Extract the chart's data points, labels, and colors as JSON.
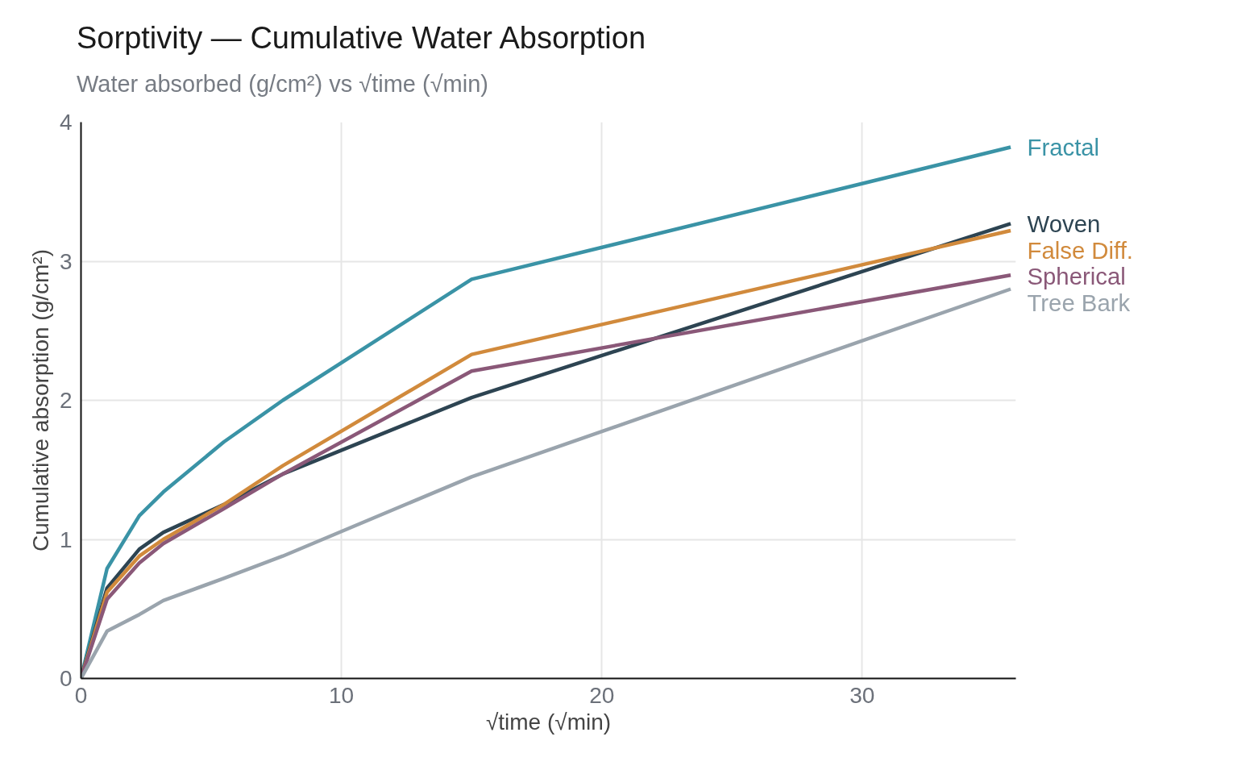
{
  "chart_data": {
    "type": "line",
    "title": "Sorptivity — Cumulative Water Absorption",
    "subtitle": "Water absorbed (g/cm²) vs √time (√min)",
    "xlabel": "√time (√min)",
    "ylabel": "Cumulative absorption (g/cm²)",
    "x": [
      0,
      1,
      2.24,
      3.16,
      5.48,
      7.75,
      15,
      35.7
    ],
    "series": [
      {
        "name": "Fractal",
        "color": "#3a93a6",
        "values": [
          0,
          0.79,
          1.17,
          1.34,
          1.7,
          2.0,
          2.87,
          3.82
        ]
      },
      {
        "name": "Woven",
        "color": "#2d4452",
        "values": [
          0,
          0.65,
          0.93,
          1.05,
          1.25,
          1.47,
          2.02,
          3.27
        ]
      },
      {
        "name": "False Diff.",
        "color": "#d18a3c",
        "values": [
          0,
          0.62,
          0.88,
          1.0,
          1.25,
          1.53,
          2.33,
          3.22
        ]
      },
      {
        "name": "Spherical",
        "color": "#8a5878",
        "values": [
          0,
          0.57,
          0.83,
          0.97,
          1.22,
          1.47,
          2.21,
          2.9
        ]
      },
      {
        "name": "Tree Bark",
        "color": "#9aa4ad",
        "values": [
          0,
          0.34,
          0.46,
          0.56,
          0.72,
          0.88,
          1.45,
          2.8
        ]
      }
    ],
    "xlim": [
      0,
      35.9
    ],
    "ylim": [
      0,
      4
    ],
    "xticks": [
      0,
      10,
      20,
      30
    ],
    "yticks": [
      0,
      1,
      2,
      3,
      4
    ],
    "grid": true,
    "line_style": "solid",
    "marker": "none"
  }
}
